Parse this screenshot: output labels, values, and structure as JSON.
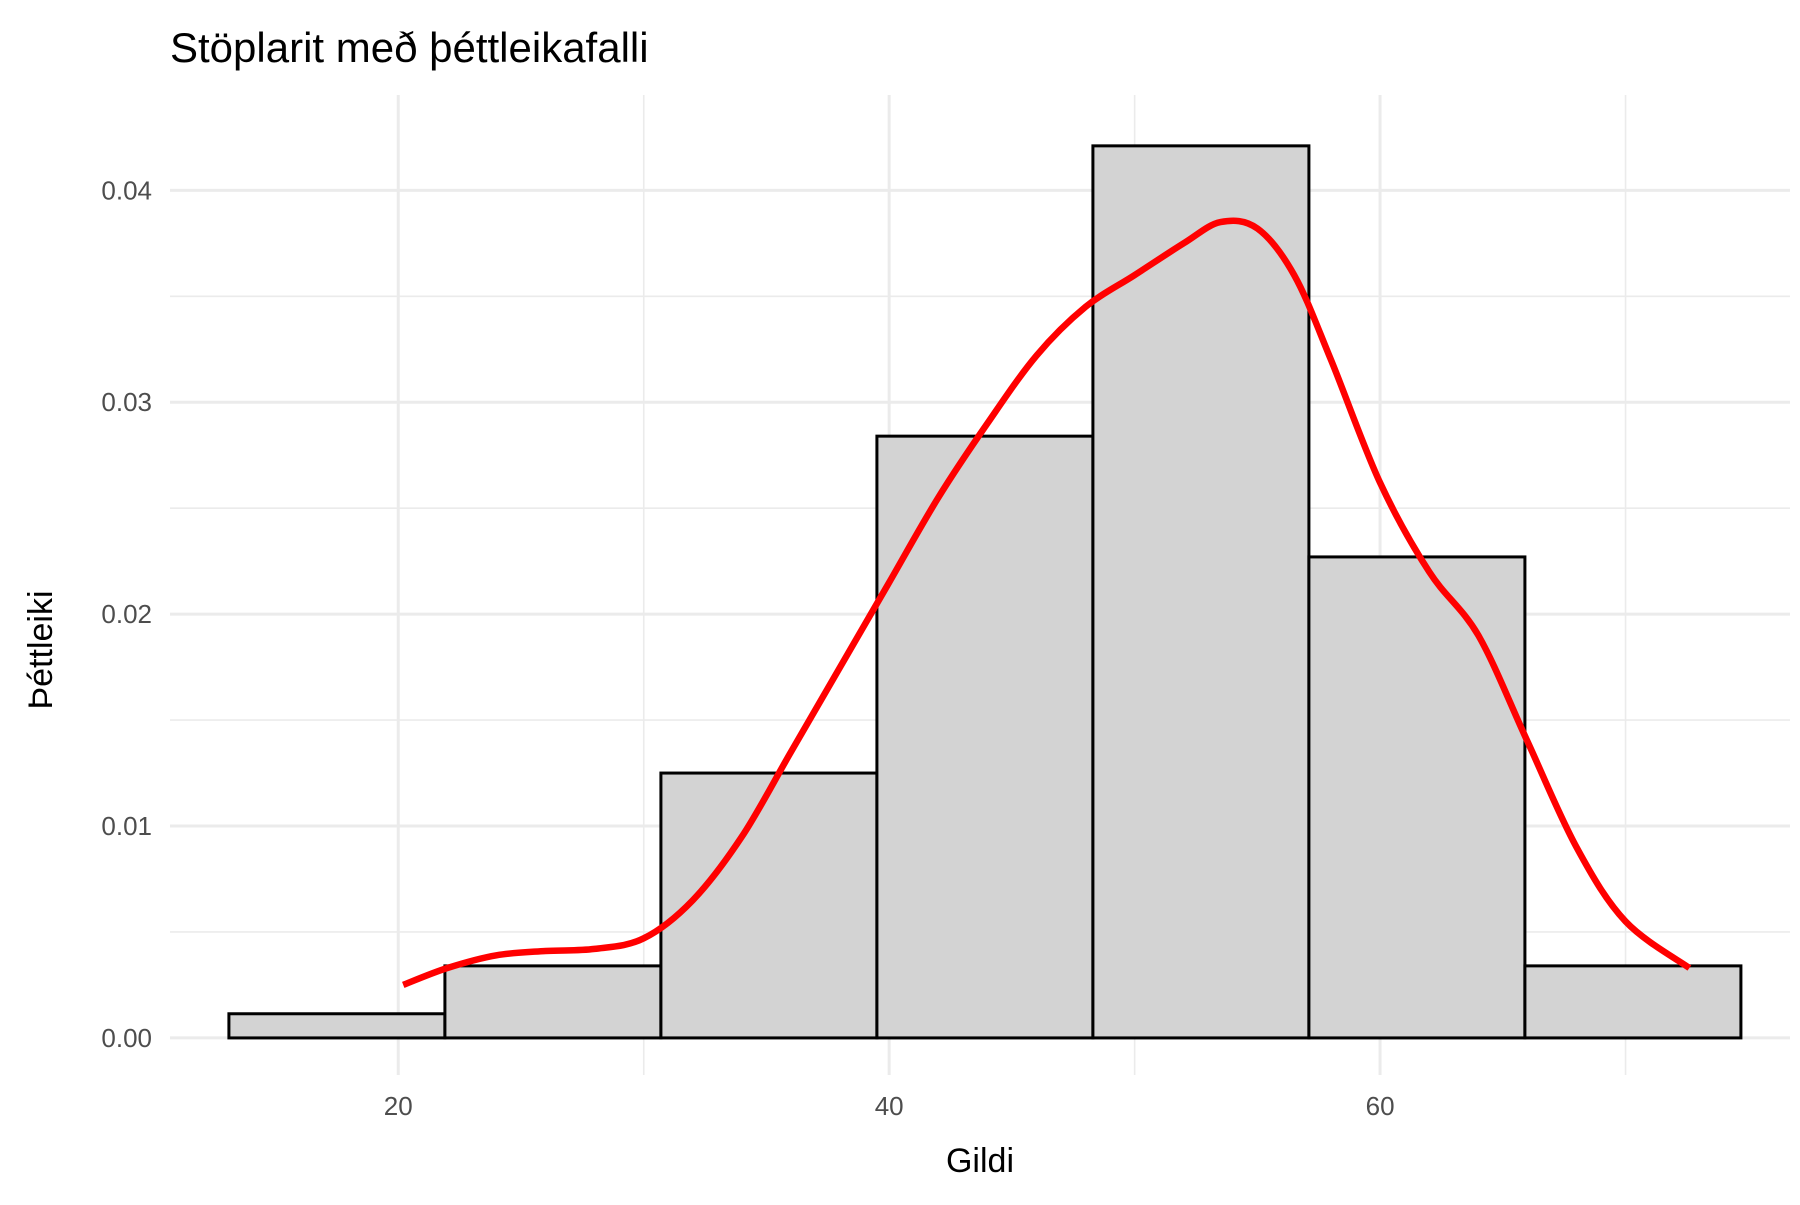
{
  "chart_data": {
    "type": "bar",
    "title": "Stöplarit með þéttleikafalli",
    "xlabel": "Gildi",
    "ylabel": "Þéttleiki",
    "xlim": [
      10.7,
      76.7
    ],
    "ylim": [
      -0.00175,
      0.0445
    ],
    "x_ticks": [
      20,
      40,
      60
    ],
    "x_tick_labels": [
      "20",
      "40",
      "60"
    ],
    "x_minor_ticks": [
      30,
      50,
      70
    ],
    "y_ticks": [
      0,
      0.01,
      0.02,
      0.03,
      0.04
    ],
    "y_tick_labels": [
      "0.00",
      "0.01",
      "0.02",
      "0.03",
      "0.04"
    ],
    "y_minor_ticks": [
      0.005,
      0.015,
      0.025,
      0.035
    ],
    "grid": true,
    "legend": "none",
    "histogram": {
      "bin_edges": [
        13.1,
        21.9,
        30.7,
        39.5,
        48.3,
        57.1,
        65.9,
        74.7
      ],
      "density": [
        0.00114,
        0.0034,
        0.0125,
        0.0284,
        0.0421,
        0.0227,
        0.0034
      ],
      "fill_color": "#d3d3d3",
      "edge_color": "#000000"
    },
    "density_curve": {
      "color": "#ff0000",
      "x": [
        20.2,
        22.0,
        24.0,
        26.0,
        28.0,
        30.0,
        32.0,
        34.0,
        36.0,
        38.0,
        40.0,
        42.0,
        44.0,
        46.0,
        48.0,
        50.0,
        52.0,
        53.5,
        55.0,
        56.5,
        58.0,
        60.0,
        62.0,
        64.0,
        66.0,
        68.0,
        70.0,
        72.6
      ],
      "y": [
        0.0025,
        0.0033,
        0.0039,
        0.0041,
        0.0042,
        0.0047,
        0.0065,
        0.0095,
        0.0135,
        0.0175,
        0.0215,
        0.0255,
        0.029,
        0.0322,
        0.0345,
        0.036,
        0.0375,
        0.0385,
        0.0382,
        0.036,
        0.032,
        0.0262,
        0.022,
        0.019,
        0.014,
        0.009,
        0.0055,
        0.0033
      ]
    }
  }
}
